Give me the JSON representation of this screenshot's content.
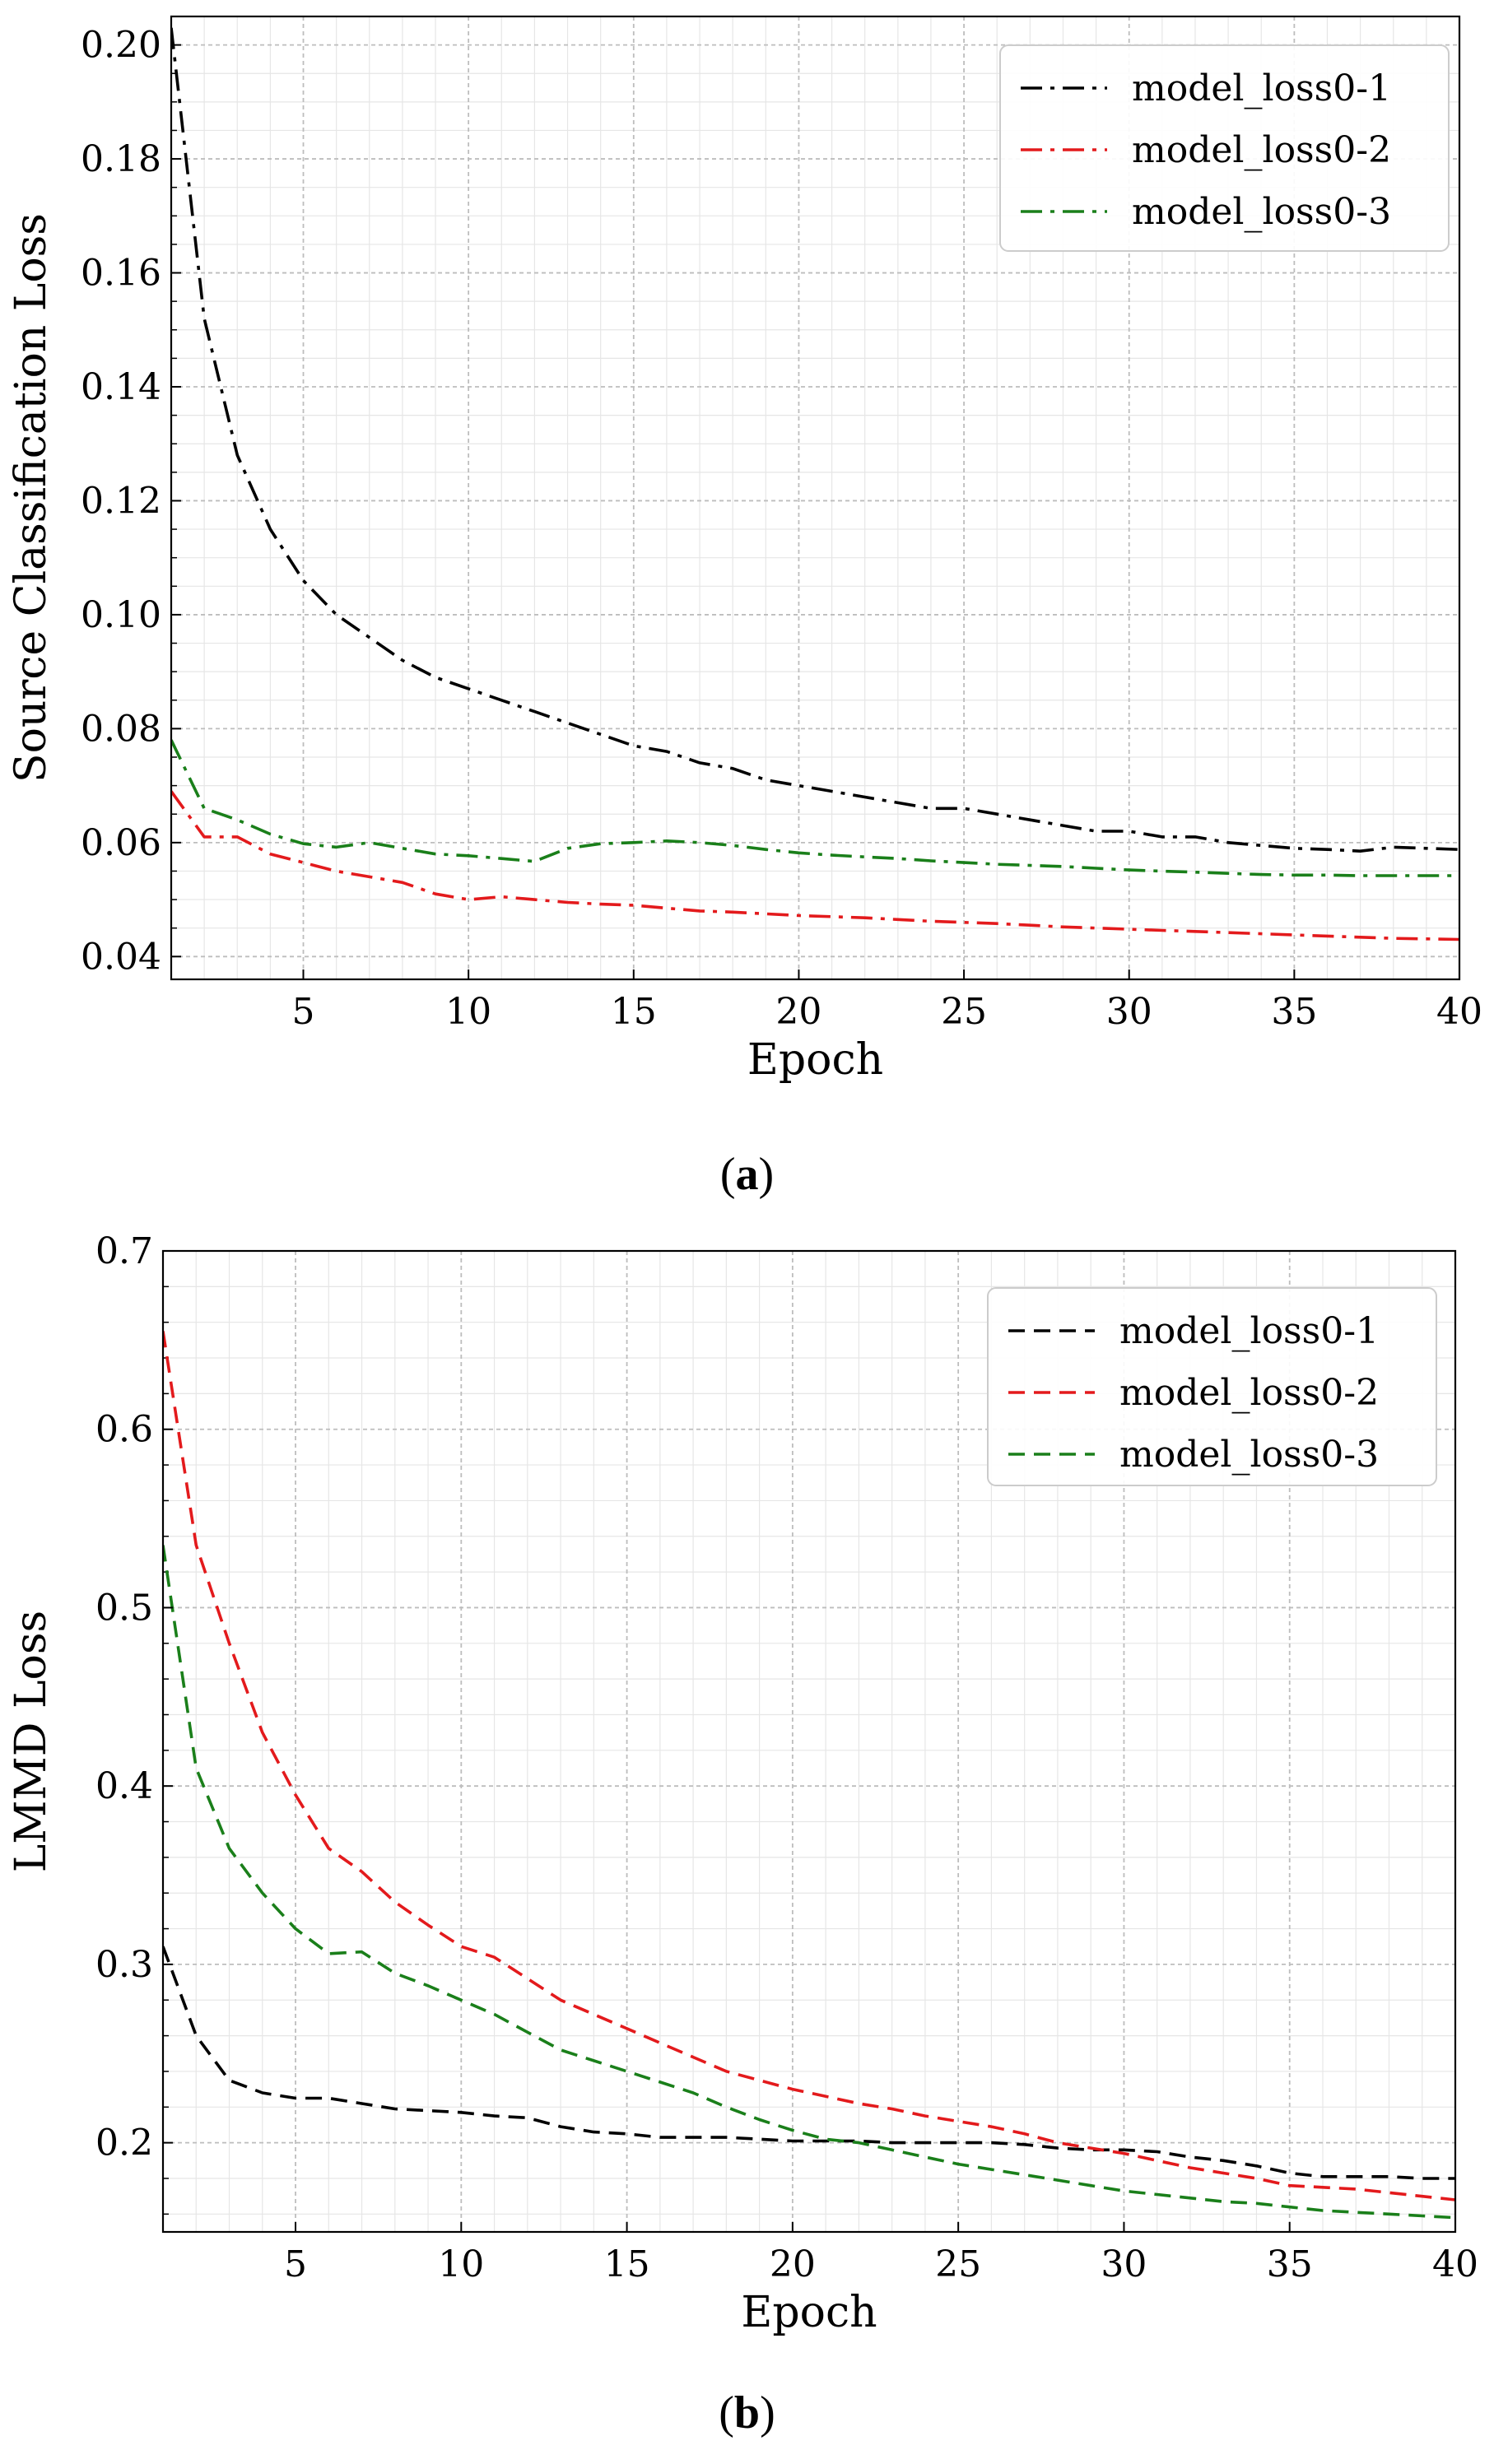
{
  "chart_data": [
    {
      "type": "line",
      "panel_label": "a",
      "xlabel": "Epoch",
      "ylabel": "Source Classification Loss",
      "xlim": [
        1,
        40
      ],
      "ylim": [
        0.036,
        0.205
      ],
      "xticks": [
        5,
        10,
        15,
        20,
        25,
        30,
        35,
        40
      ],
      "xtick_labels": [
        "5",
        "10",
        "15",
        "20",
        "25",
        "30",
        "35",
        "40"
      ],
      "yticks": [
        0.04,
        0.06,
        0.08,
        0.1,
        0.12,
        0.14,
        0.16,
        0.18,
        0.2
      ],
      "ytick_labels": [
        "0.04",
        "0.06",
        "0.08",
        "0.10",
        "0.12",
        "0.14",
        "0.16",
        "0.18",
        "0.20"
      ],
      "grid": true,
      "legend_position": "top-right",
      "line_style": "dashdot",
      "x": [
        1,
        2,
        3,
        4,
        5,
        6,
        7,
        8,
        9,
        10,
        11,
        12,
        13,
        14,
        15,
        16,
        17,
        18,
        19,
        20,
        21,
        22,
        23,
        24,
        25,
        26,
        27,
        28,
        29,
        30,
        31,
        32,
        33,
        34,
        35,
        36,
        37,
        38,
        39,
        40
      ],
      "series": [
        {
          "name": "model_loss0-1",
          "color": "#000000",
          "values": [
            0.203,
            0.152,
            0.128,
            0.115,
            0.106,
            0.1,
            0.096,
            0.092,
            0.089,
            0.087,
            0.085,
            0.083,
            0.081,
            0.079,
            0.077,
            0.076,
            0.074,
            0.073,
            0.071,
            0.07,
            0.069,
            0.068,
            0.067,
            0.066,
            0.066,
            0.065,
            0.064,
            0.063,
            0.062,
            0.062,
            0.061,
            0.061,
            0.06,
            0.0595,
            0.059,
            0.0588,
            0.0585,
            0.0592,
            0.059,
            0.0588
          ]
        },
        {
          "name": "model_loss0-2",
          "color": "#e31a1c",
          "values": [
            0.069,
            0.061,
            0.061,
            0.058,
            0.0565,
            0.055,
            0.054,
            0.053,
            0.051,
            0.05,
            0.0505,
            0.05,
            0.0495,
            0.0492,
            0.049,
            0.0485,
            0.048,
            0.0478,
            0.0475,
            0.0472,
            0.047,
            0.0468,
            0.0465,
            0.0462,
            0.046,
            0.0458,
            0.0455,
            0.0452,
            0.045,
            0.0448,
            0.0446,
            0.0444,
            0.0442,
            0.044,
            0.0438,
            0.0436,
            0.0434,
            0.0432,
            0.0431,
            0.043
          ]
        },
        {
          "name": "model_loss0-3",
          "color": "#1a7f1a",
          "values": [
            0.078,
            0.066,
            0.064,
            0.0615,
            0.0598,
            0.0592,
            0.06,
            0.059,
            0.058,
            0.0577,
            0.0572,
            0.0567,
            0.059,
            0.0598,
            0.06,
            0.0603,
            0.06,
            0.0595,
            0.0588,
            0.0582,
            0.0578,
            0.0575,
            0.0572,
            0.0568,
            0.0565,
            0.0562,
            0.056,
            0.0558,
            0.0555,
            0.0552,
            0.055,
            0.0548,
            0.0546,
            0.0544,
            0.0543,
            0.0543,
            0.0542,
            0.0542,
            0.0542,
            0.0542
          ]
        }
      ]
    },
    {
      "type": "line",
      "panel_label": "b",
      "xlabel": "Epoch",
      "ylabel": "LMMD Loss",
      "xlim": [
        1,
        40
      ],
      "ylim": [
        0.15,
        0.7
      ],
      "xticks": [
        5,
        10,
        15,
        20,
        25,
        30,
        35,
        40
      ],
      "xtick_labels": [
        "5",
        "10",
        "15",
        "20",
        "25",
        "30",
        "35",
        "40"
      ],
      "yticks": [
        0.2,
        0.3,
        0.4,
        0.5,
        0.6,
        0.7
      ],
      "ytick_labels": [
        "0.2",
        "0.3",
        "0.4",
        "0.5",
        "0.6",
        "0.7"
      ],
      "grid": true,
      "legend_position": "top-right",
      "line_style": "dashed",
      "x": [
        1,
        2,
        3,
        4,
        5,
        6,
        7,
        8,
        9,
        10,
        11,
        12,
        13,
        14,
        15,
        16,
        17,
        18,
        19,
        20,
        21,
        22,
        23,
        24,
        25,
        26,
        27,
        28,
        29,
        30,
        31,
        32,
        33,
        34,
        35,
        36,
        37,
        38,
        39,
        40
      ],
      "series": [
        {
          "name": "model_loss0-1",
          "color": "#000000",
          "values": [
            0.31,
            0.26,
            0.235,
            0.228,
            0.225,
            0.225,
            0.222,
            0.219,
            0.218,
            0.217,
            0.215,
            0.214,
            0.209,
            0.206,
            0.205,
            0.203,
            0.203,
            0.203,
            0.202,
            0.201,
            0.201,
            0.201,
            0.2,
            0.2,
            0.2,
            0.2,
            0.199,
            0.197,
            0.196,
            0.196,
            0.195,
            0.192,
            0.19,
            0.187,
            0.183,
            0.181,
            0.181,
            0.181,
            0.18,
            0.18
          ]
        },
        {
          "name": "model_loss0-2",
          "color": "#e31a1c",
          "values": [
            0.655,
            0.535,
            0.48,
            0.43,
            0.395,
            0.365,
            0.352,
            0.335,
            0.322,
            0.31,
            0.304,
            0.292,
            0.28,
            0.272,
            0.264,
            0.256,
            0.248,
            0.24,
            0.235,
            0.23,
            0.226,
            0.222,
            0.219,
            0.215,
            0.212,
            0.209,
            0.205,
            0.2,
            0.197,
            0.194,
            0.19,
            0.186,
            0.183,
            0.18,
            0.176,
            0.175,
            0.174,
            0.172,
            0.17,
            0.168
          ]
        },
        {
          "name": "model_loss0-3",
          "color": "#1a7f1a",
          "values": [
            0.535,
            0.41,
            0.365,
            0.34,
            0.32,
            0.306,
            0.307,
            0.295,
            0.288,
            0.28,
            0.272,
            0.262,
            0.252,
            0.246,
            0.24,
            0.234,
            0.228,
            0.22,
            0.213,
            0.207,
            0.202,
            0.2,
            0.196,
            0.192,
            0.188,
            0.185,
            0.182,
            0.179,
            0.176,
            0.173,
            0.171,
            0.169,
            0.167,
            0.166,
            0.164,
            0.162,
            0.161,
            0.16,
            0.159,
            0.158
          ]
        }
      ]
    }
  ]
}
